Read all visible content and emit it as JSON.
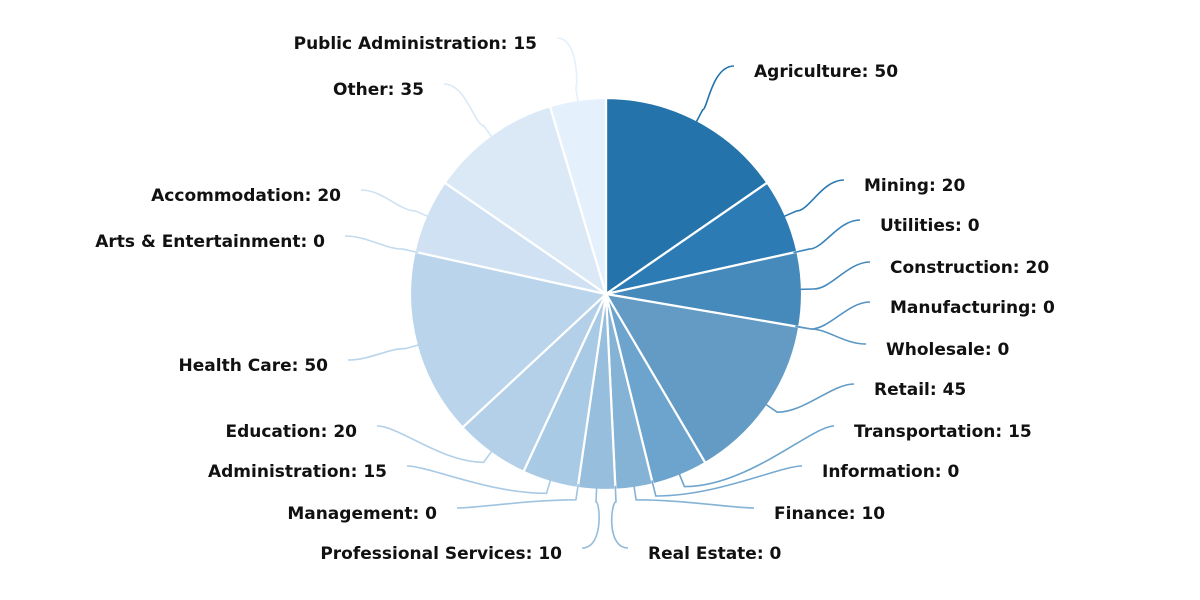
{
  "chart_data": {
    "type": "pie",
    "start": "12 o'clock, clockwise",
    "label_format": "{label}: {value}",
    "slices": [
      {
        "label": "Agriculture",
        "value": 50,
        "color": "#2474ab",
        "text": "Agriculture: 50"
      },
      {
        "label": "Mining",
        "value": 20,
        "color": "#2c7bb4",
        "text": "Mining: 20"
      },
      {
        "label": "Utilities",
        "value": 0,
        "color": "#3a84ba",
        "text": "Utilities: 0"
      },
      {
        "label": "Construction",
        "value": 20,
        "color": "#4689bb",
        "text": "Construction: 20"
      },
      {
        "label": "Manufacturing",
        "value": 0,
        "color": "#5392c2",
        "text": "Manufacturing: 0"
      },
      {
        "label": "Wholesale",
        "value": 0,
        "color": "#5a97c4",
        "text": "Wholesale: 0"
      },
      {
        "label": "Retail",
        "value": 45,
        "color": "#639bc5",
        "text": "Retail: 45"
      },
      {
        "label": "Transportation",
        "value": 15,
        "color": "#6da4cd",
        "text": "Transportation: 15"
      },
      {
        "label": "Information",
        "value": 0,
        "color": "#78aad1",
        "text": "Information: 0"
      },
      {
        "label": "Finance",
        "value": 10,
        "color": "#85b3d6",
        "text": "Finance: 10"
      },
      {
        "label": "Real Estate",
        "value": 0,
        "color": "#8db8d9",
        "text": "Real Estate: 0"
      },
      {
        "label": "Professional Services",
        "value": 10,
        "color": "#97bedc",
        "text": "Professional Services: 10"
      },
      {
        "label": "Management",
        "value": 0,
        "color": "#a0c4e0",
        "text": "Management: 0"
      },
      {
        "label": "Administration",
        "value": 15,
        "color": "#a9cae5",
        "text": "Administration: 15"
      },
      {
        "label": "Education",
        "value": 20,
        "color": "#b3d0e8",
        "text": "Education: 20"
      },
      {
        "label": "Health Care",
        "value": 50,
        "color": "#bad5eb",
        "text": "Health Care: 50"
      },
      {
        "label": "Arts & Entertainment",
        "value": 0,
        "color": "#c2daee",
        "text": "Arts & Entertainment: 0"
      },
      {
        "label": "Accommodation",
        "value": 20,
        "color": "#cfe1f2",
        "text": "Accommodation: 20"
      },
      {
        "label": "Other",
        "value": 35,
        "color": "#dbe9f7",
        "text": "Other: 35"
      },
      {
        "label": "Public Administration",
        "value": 15,
        "color": "#e4f0fb",
        "text": "Public Administration: 15"
      }
    ]
  }
}
